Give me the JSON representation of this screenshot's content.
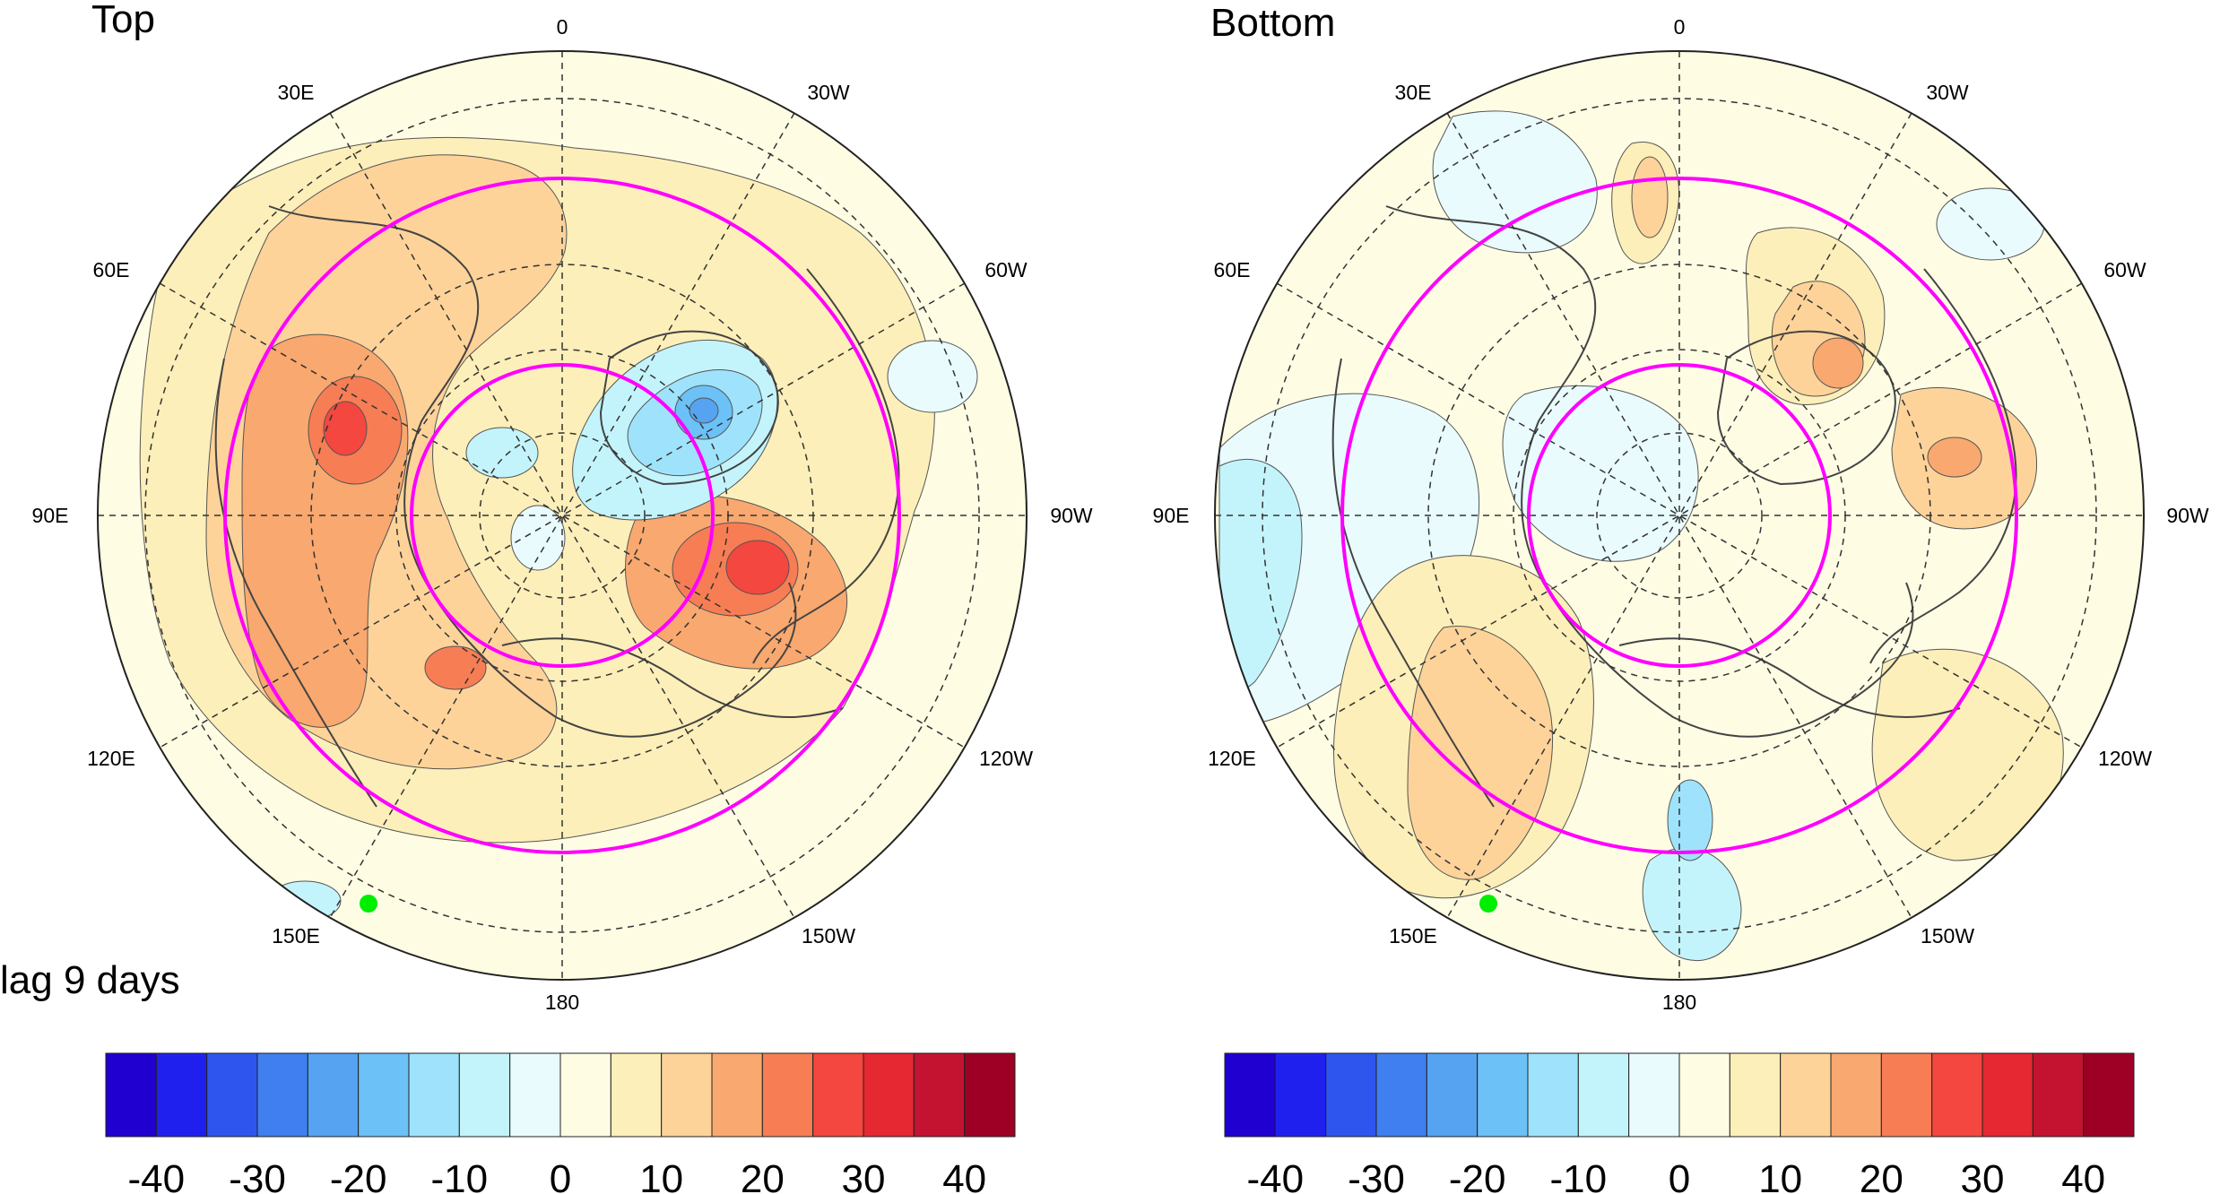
{
  "caption": "lag 9 days",
  "panels": [
    {
      "id": "top",
      "title": "Top",
      "longitude_labels": [
        "0",
        "30W",
        "60W",
        "90W",
        "120W",
        "150W",
        "180",
        "150E",
        "120E",
        "90E",
        "60E",
        "30E"
      ]
    },
    {
      "id": "bottom",
      "title": "Bottom",
      "longitude_labels": [
        "0",
        "30W",
        "60W",
        "90W",
        "120W",
        "150W",
        "180",
        "150E",
        "120E",
        "90E",
        "60E",
        "30E"
      ]
    }
  ],
  "colorbar": {
    "tick_labels": [
      "-40",
      "-30",
      "-20",
      "-10",
      "0",
      "10",
      "20",
      "30",
      "40"
    ],
    "colors": [
      "#1f00d0",
      "#2020ee",
      "#2e55ee",
      "#3f7ff0",
      "#56a3f2",
      "#6cc1f6",
      "#9ee3fb",
      "#c4f4fb",
      "#e9fbfd",
      "#fefde4",
      "#fdefb9",
      "#fdd39a",
      "#f9a86f",
      "#f77d55",
      "#f4473f",
      "#e52832",
      "#c41330",
      "#9d0024"
    ]
  },
  "colors": {
    "circle_lines": "#ff00ff",
    "marker": "#00ee00",
    "coast": "#444444"
  }
}
